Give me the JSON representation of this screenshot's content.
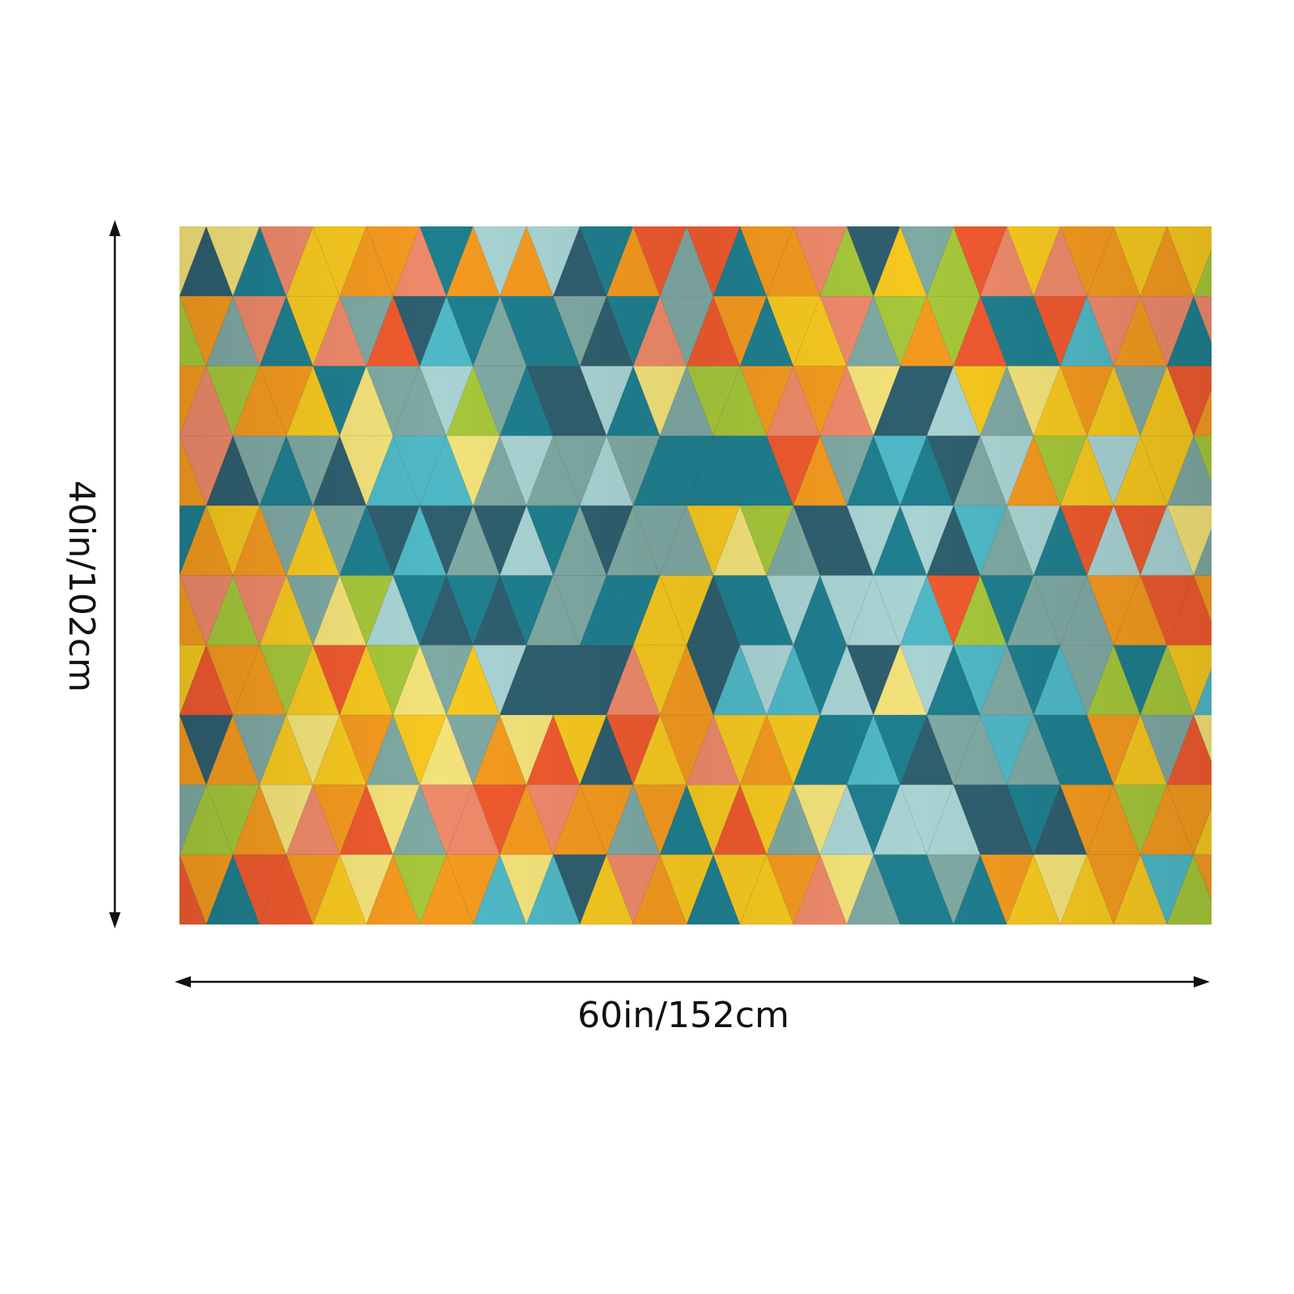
{
  "product": {
    "pattern_name": "triangle-mosaic",
    "palette": {
      "teal": "#1f7f8f",
      "dark_teal": "#2f5f6f",
      "sage": "#7fa9a3",
      "light_aqua": "#a9d3d3",
      "aqua": "#4fb8c6",
      "yellow": "#f6c81f",
      "light_yellow": "#f3e27a",
      "orange": "#f49a1f",
      "red_orange": "#ef5a2f",
      "salmon": "#ee8a6a",
      "lime": "#a6c73a"
    }
  },
  "dimensions": {
    "width_label": "60in/152cm",
    "height_label": "40in/102cm",
    "line_color": "#111111"
  }
}
